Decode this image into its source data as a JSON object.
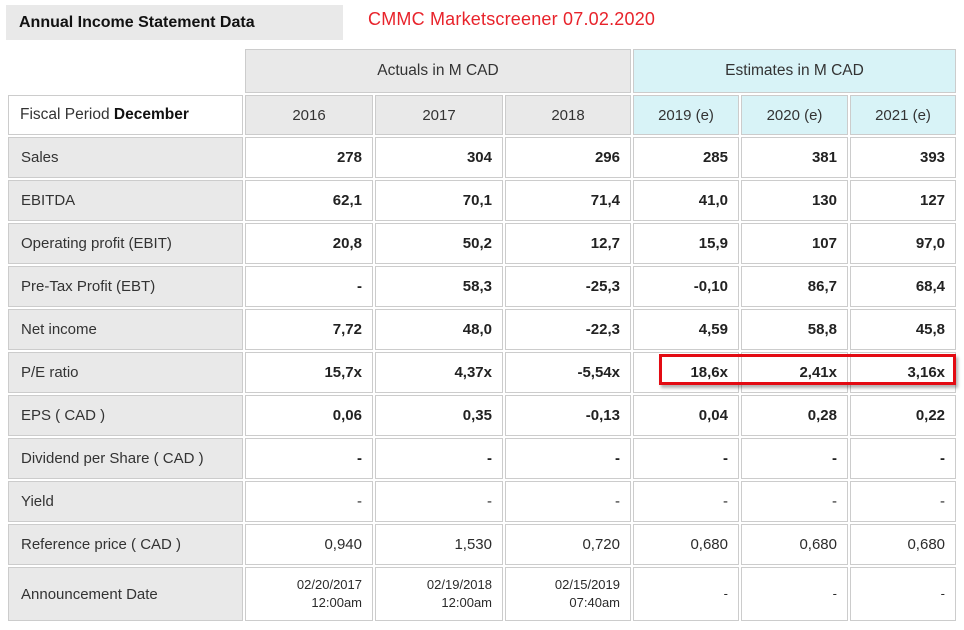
{
  "title": "Annual Income Statement Data",
  "annotation": "CMMC Marketscreener 07.02.2020",
  "colors": {
    "annotation_red": "#e8232b",
    "highlight_border_red": "#e30b13",
    "header_gray": "#e9e9e9",
    "estimates_cyan": "#d8f3f7",
    "border_gray": "#cccccc"
  },
  "table": {
    "group_headers": [
      {
        "label": "Actuals in M CAD"
      },
      {
        "label": "Estimates in M CAD"
      }
    ],
    "fiscal_period_label": "Fiscal Period",
    "fiscal_period_value": "December",
    "year_headers": [
      "2016",
      "2017",
      "2018",
      "2019 (e)",
      "2020 (e)",
      "2021 (e)"
    ],
    "rows": [
      {
        "label": "Sales",
        "values": [
          "278",
          "304",
          "296",
          "285",
          "381",
          "393"
        ],
        "bold": true
      },
      {
        "label": "EBITDA",
        "values": [
          "62,1",
          "70,1",
          "71,4",
          "41,0",
          "130",
          "127"
        ],
        "bold": true
      },
      {
        "label": "Operating profit (EBIT)",
        "values": [
          "20,8",
          "50,2",
          "12,7",
          "15,9",
          "107",
          "97,0"
        ],
        "bold": true
      },
      {
        "label": "Pre-Tax Profit (EBT)",
        "values": [
          "-",
          "58,3",
          "-25,3",
          "-0,10",
          "86,7",
          "68,4"
        ],
        "bold": true
      },
      {
        "label": "Net income",
        "values": [
          "7,72",
          "48,0",
          "-22,3",
          "4,59",
          "58,8",
          "45,8"
        ],
        "bold": true
      },
      {
        "label": "P/E ratio",
        "values": [
          "15,7x",
          "4,37x",
          "-5,54x",
          "18,6x",
          "2,41x",
          "3,16x"
        ],
        "bold": true,
        "highlight_estimates": true
      },
      {
        "label": "EPS ( CAD )",
        "values": [
          "0,06",
          "0,35",
          "-0,13",
          "0,04",
          "0,28",
          "0,22"
        ],
        "bold": true
      },
      {
        "label": "Dividend per Share ( CAD )",
        "values": [
          "-",
          "-",
          "-",
          "-",
          "-",
          "-"
        ],
        "bold": true
      },
      {
        "label": "Yield",
        "values": [
          "-",
          "-",
          "-",
          "-",
          "-",
          "-"
        ],
        "bold": false
      },
      {
        "label": "Reference price ( CAD )",
        "values": [
          "0,940",
          "1,530",
          "0,720",
          "0,680",
          "0,680",
          "0,680"
        ],
        "bold": false
      },
      {
        "label": "Announcement Date",
        "values": [
          "02/20/2017\n12:00am",
          "02/19/2018\n12:00am",
          "02/15/2019\n07:40am",
          "-",
          "-",
          "-"
        ],
        "bold": false
      }
    ]
  }
}
